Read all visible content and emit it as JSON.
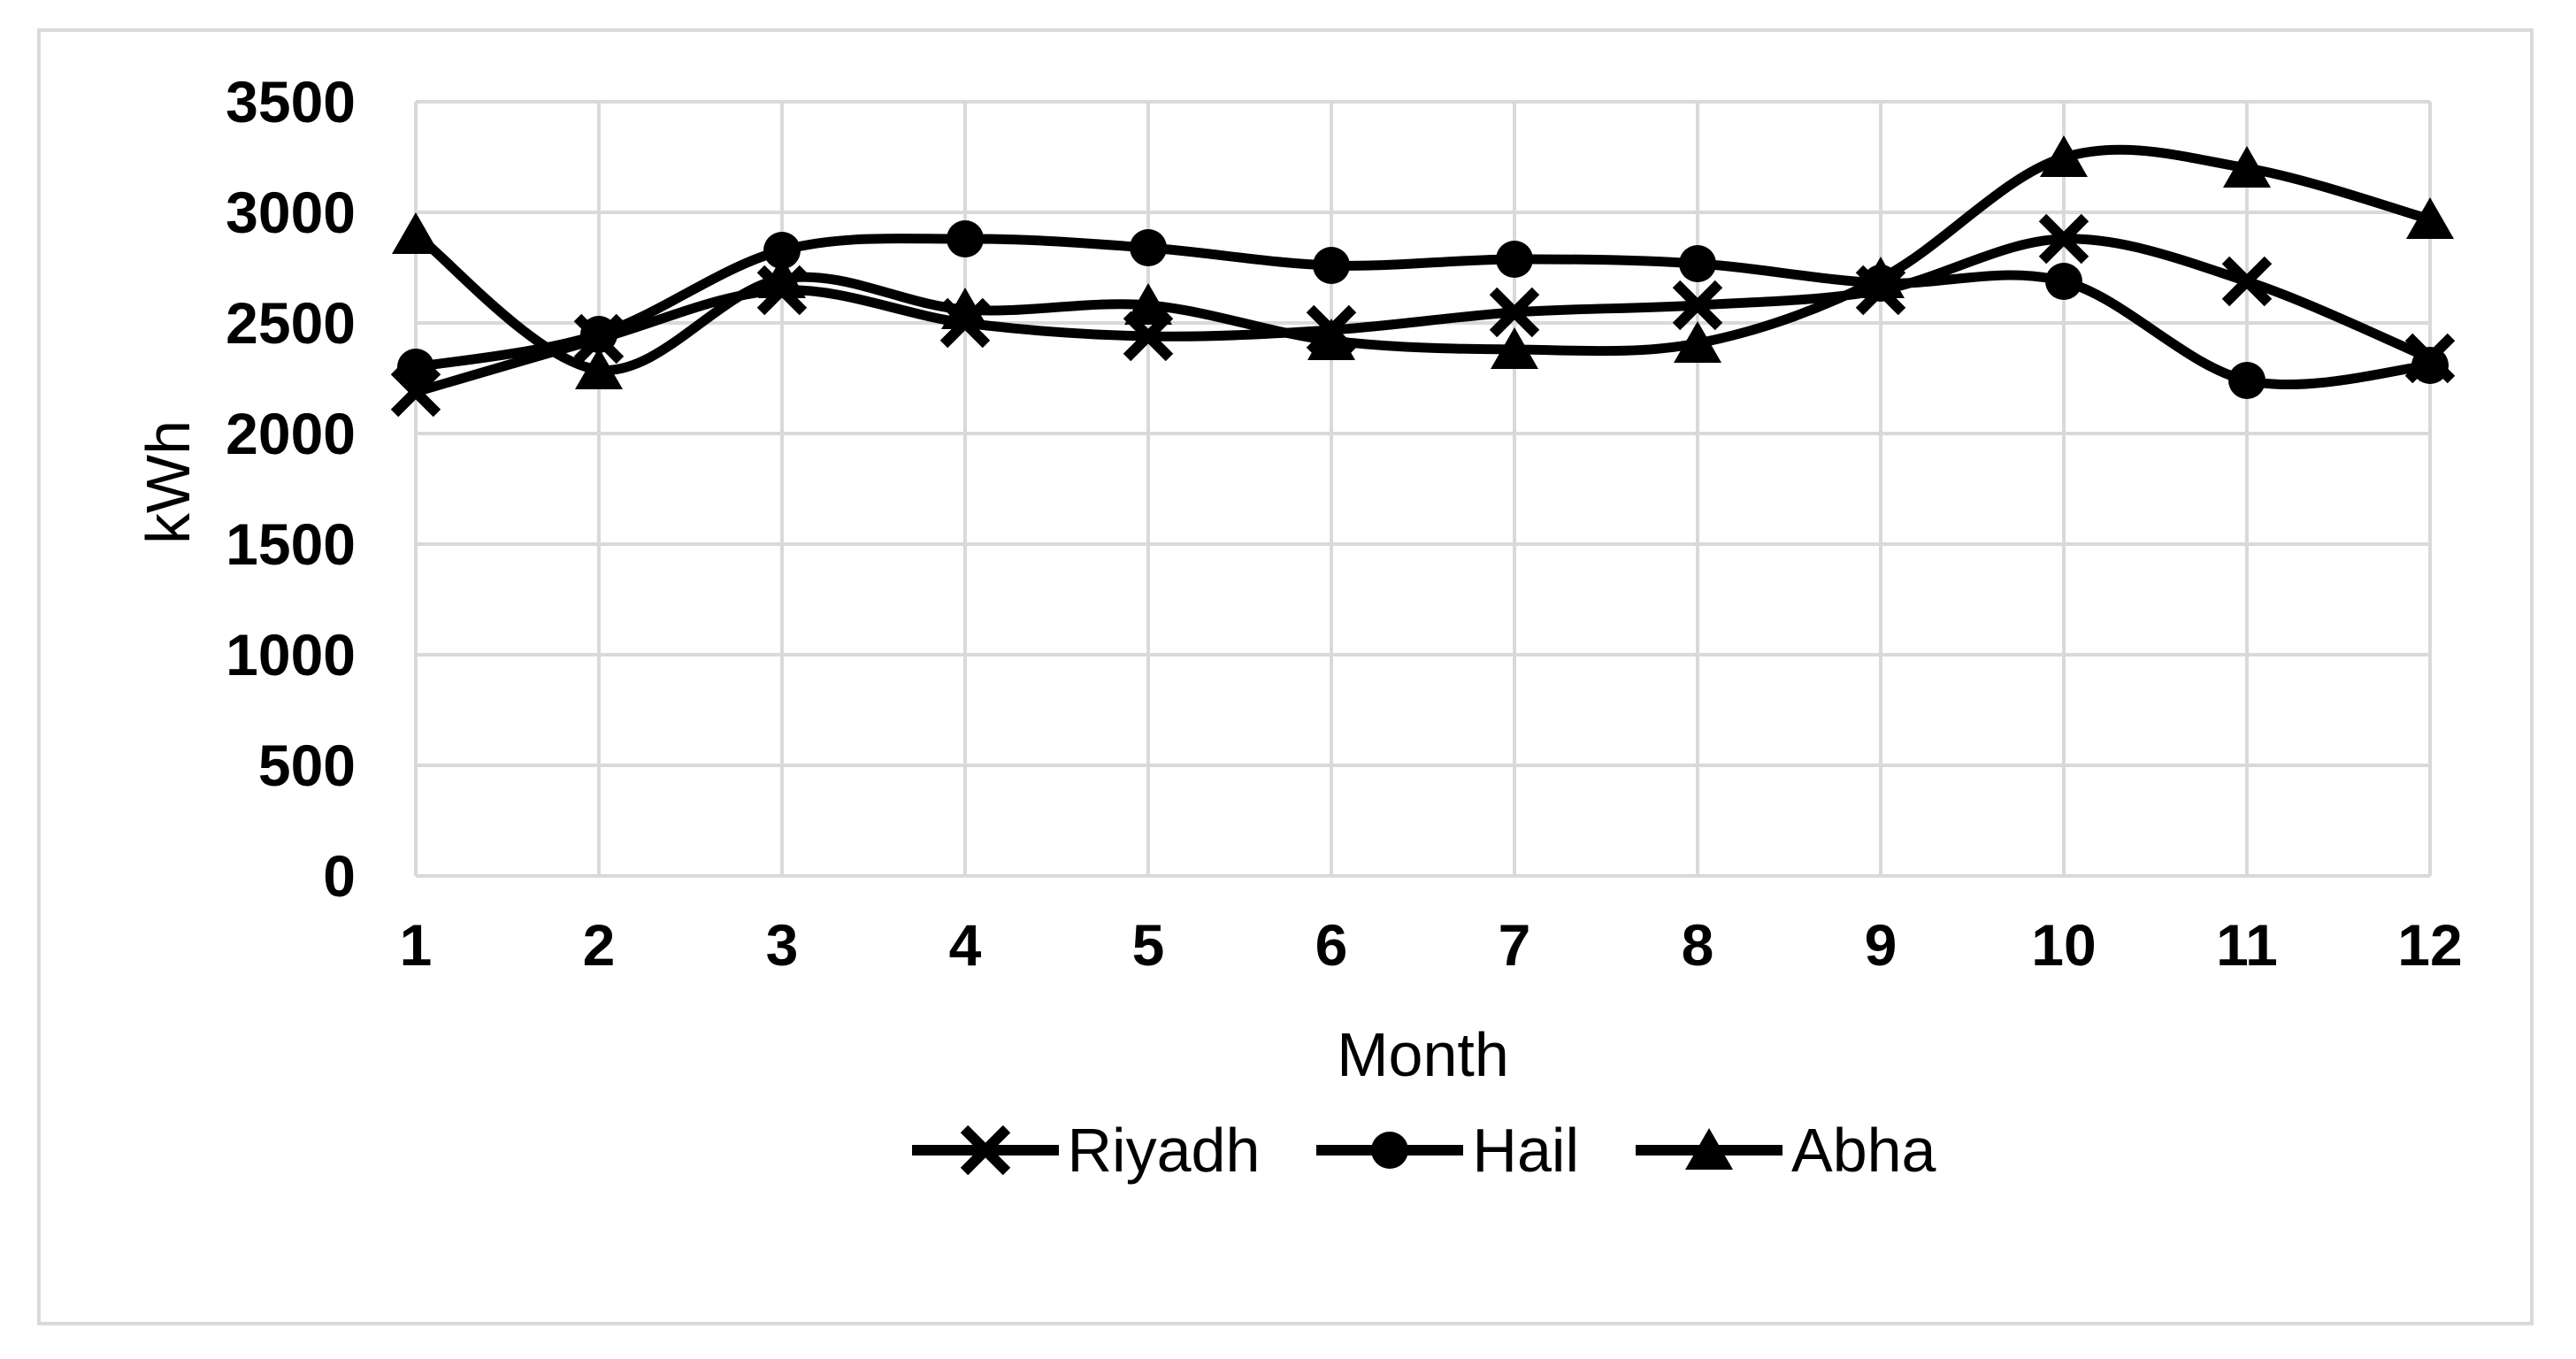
{
  "chart_data": {
    "type": "line",
    "title": "",
    "xlabel": "Month",
    "ylabel": "kWh",
    "x": [
      1,
      2,
      3,
      4,
      5,
      6,
      7,
      8,
      9,
      10,
      11,
      12
    ],
    "x_ticks": [
      "1",
      "2",
      "3",
      "4",
      "5",
      "6",
      "7",
      "8",
      "9",
      "10",
      "11",
      "12"
    ],
    "y_ticks": [
      "0",
      "500",
      "1000",
      "1500",
      "2000",
      "2500",
      "3000",
      "3500"
    ],
    "ylim": [
      0,
      3500
    ],
    "ytick_step": 500,
    "grid": true,
    "smoothed_lines": true,
    "legend_position": "bottom",
    "series": [
      {
        "name": "Riyadh",
        "marker": "x",
        "values": [
          2190,
          2430,
          2650,
          2500,
          2440,
          2470,
          2550,
          2580,
          2650,
          2880,
          2690,
          2340
        ]
      },
      {
        "name": "Hail",
        "marker": "circle",
        "values": [
          2300,
          2450,
          2830,
          2880,
          2840,
          2760,
          2790,
          2770,
          2680,
          2690,
          2240,
          2310
        ]
      },
      {
        "name": "Abha",
        "marker": "triangle",
        "values": [
          2900,
          2290,
          2700,
          2560,
          2580,
          2420,
          2380,
          2410,
          2700,
          3250,
          3200,
          2970
        ]
      }
    ],
    "colors": {
      "series_line": "#000000",
      "grid_line": "#d9d9d9",
      "text": "#000000",
      "background": "#ffffff",
      "chart_border": "#d9d9d9"
    }
  }
}
